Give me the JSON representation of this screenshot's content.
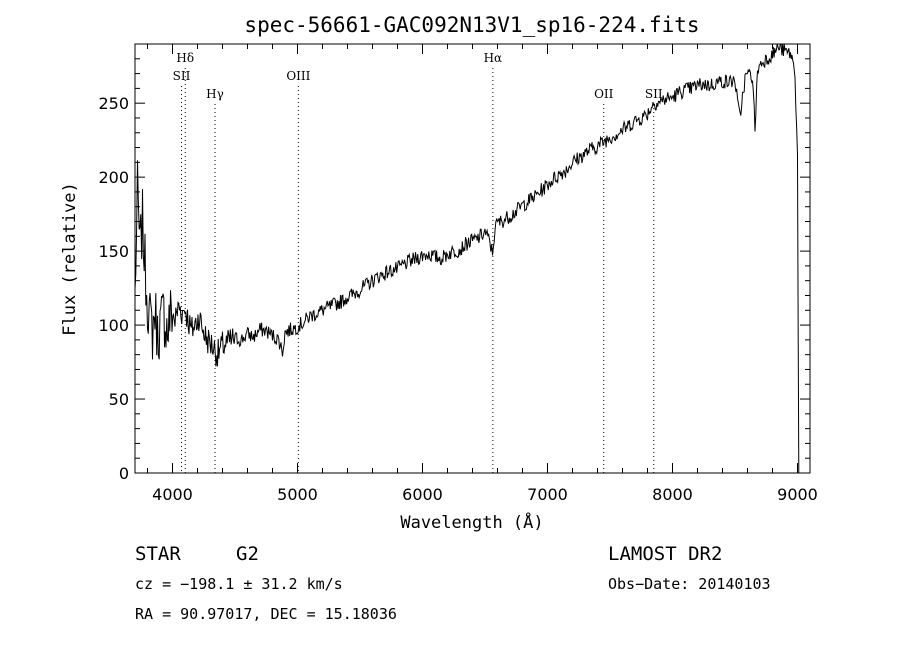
{
  "chart_data": {
    "type": "line",
    "title": "spec-56661-GAC092N13V1_sp16-224.fits",
    "xlabel": "Wavelength (Å)",
    "ylabel": "Flux (relative)",
    "xlim": [
      3700,
      9100
    ],
    "ylim": [
      0,
      290
    ],
    "x_ticks": [
      4000,
      5000,
      6000,
      7000,
      8000,
      9000
    ],
    "y_ticks": [
      0,
      50,
      100,
      150,
      200,
      250
    ],
    "grid": false,
    "line_color": "#000000",
    "spectrum": [
      [
        3700,
        120
      ],
      [
        3720,
        190
      ],
      [
        3740,
        150
      ],
      [
        3760,
        170
      ],
      [
        3780,
        140
      ],
      [
        3800,
        118
      ],
      [
        3820,
        103
      ],
      [
        3840,
        96
      ],
      [
        3860,
        110
      ],
      [
        3880,
        93
      ],
      [
        3900,
        100
      ],
      [
        3930,
        108
      ],
      [
        3960,
        95
      ],
      [
        3990,
        110
      ],
      [
        4020,
        103
      ],
      [
        4050,
        113
      ],
      [
        4080,
        108
      ],
      [
        4100,
        112
      ],
      [
        4120,
        105
      ],
      [
        4150,
        96
      ],
      [
        4180,
        100
      ],
      [
        4210,
        106
      ],
      [
        4240,
        98
      ],
      [
        4270,
        91
      ],
      [
        4300,
        88
      ],
      [
        4330,
        85
      ],
      [
        4360,
        80
      ],
      [
        4400,
        86
      ],
      [
        4450,
        88
      ],
      [
        4500,
        91
      ],
      [
        4550,
        90
      ],
      [
        4600,
        94
      ],
      [
        4650,
        92
      ],
      [
        4700,
        97
      ],
      [
        4750,
        96
      ],
      [
        4800,
        93
      ],
      [
        4850,
        90
      ],
      [
        4880,
        82
      ],
      [
        4900,
        95
      ],
      [
        4950,
        97
      ],
      [
        5000,
        99
      ],
      [
        5050,
        102
      ],
      [
        5100,
        106
      ],
      [
        5150,
        108
      ],
      [
        5200,
        110
      ],
      [
        5250,
        112
      ],
      [
        5300,
        114
      ],
      [
        5350,
        116
      ],
      [
        5400,
        119
      ],
      [
        5450,
        121
      ],
      [
        5500,
        124
      ],
      [
        5550,
        127
      ],
      [
        5600,
        130
      ],
      [
        5650,
        133
      ],
      [
        5700,
        135
      ],
      [
        5750,
        137
      ],
      [
        5800,
        138
      ],
      [
        5850,
        141
      ],
      [
        5900,
        143
      ],
      [
        5950,
        145
      ],
      [
        6000,
        147
      ],
      [
        6050,
        148
      ],
      [
        6100,
        146
      ],
      [
        6150,
        145
      ],
      [
        6200,
        148
      ],
      [
        6250,
        150
      ],
      [
        6300,
        151
      ],
      [
        6350,
        155
      ],
      [
        6400,
        157
      ],
      [
        6450,
        159
      ],
      [
        6500,
        163
      ],
      [
        6540,
        156
      ],
      [
        6560,
        148
      ],
      [
        6580,
        166
      ],
      [
        6600,
        169
      ],
      [
        6650,
        171
      ],
      [
        6700,
        174
      ],
      [
        6750,
        177
      ],
      [
        6800,
        181
      ],
      [
        6850,
        184
      ],
      [
        6900,
        187
      ],
      [
        6950,
        191
      ],
      [
        7000,
        195
      ],
      [
        7050,
        199
      ],
      [
        7100,
        202
      ],
      [
        7150,
        205
      ],
      [
        7200,
        210
      ],
      [
        7250,
        213
      ],
      [
        7300,
        216
      ],
      [
        7350,
        219
      ],
      [
        7400,
        221
      ],
      [
        7450,
        224
      ],
      [
        7500,
        227
      ],
      [
        7550,
        229
      ],
      [
        7600,
        232
      ],
      [
        7650,
        235
      ],
      [
        7700,
        238
      ],
      [
        7750,
        240
      ],
      [
        7800,
        243
      ],
      [
        7850,
        250
      ],
      [
        7900,
        251
      ],
      [
        7950,
        253
      ],
      [
        8000,
        254
      ],
      [
        8050,
        257
      ],
      [
        8100,
        259
      ],
      [
        8150,
        260
      ],
      [
        8200,
        262
      ],
      [
        8250,
        263
      ],
      [
        8300,
        262
      ],
      [
        8350,
        264
      ],
      [
        8400,
        265
      ],
      [
        8450,
        264
      ],
      [
        8500,
        266
      ],
      [
        8520,
        250
      ],
      [
        8540,
        240
      ],
      [
        8560,
        255
      ],
      [
        8580,
        266
      ],
      [
        8600,
        270
      ],
      [
        8640,
        268
      ],
      [
        8660,
        232
      ],
      [
        8680,
        272
      ],
      [
        8700,
        276
      ],
      [
        8750,
        280
      ],
      [
        8800,
        283
      ],
      [
        8850,
        288
      ],
      [
        8900,
        285
      ],
      [
        8950,
        283
      ],
      [
        8980,
        270
      ],
      [
        9000,
        215
      ],
      [
        9010,
        0
      ]
    ],
    "lines": [
      {
        "label": "Hδ",
        "x": 4102,
        "label_row": 0
      },
      {
        "label": "SII",
        "x": 4072,
        "label_row": 1
      },
      {
        "label": "Hγ",
        "x": 4340,
        "label_row": 2
      },
      {
        "label": "OIII",
        "x": 5007,
        "label_row": 1
      },
      {
        "label": "Hα",
        "x": 6563,
        "label_row": 0
      },
      {
        "label": "OII",
        "x": 7450,
        "label_row": 2
      },
      {
        "label": "SII",
        "x": 7850,
        "label_row": 2
      }
    ]
  },
  "info": {
    "object_class": "STAR",
    "subclass": "G2",
    "survey": "LAMOST DR2",
    "redshift": "cz = −198.1 ± 31.2 km/s",
    "obs_date": "Obs−Date: 20140103",
    "coords": "RA =  90.97017, DEC =  15.18036"
  }
}
